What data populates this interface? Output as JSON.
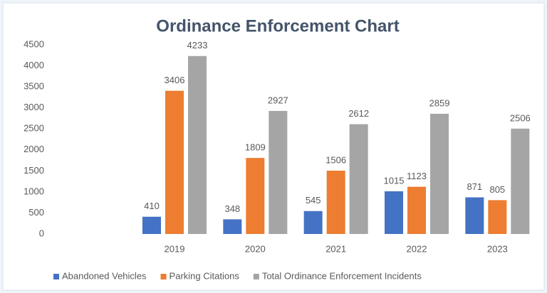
{
  "chart_data": {
    "type": "bar",
    "title": "Ordinance Enforcement Chart",
    "categories": [
      null,
      "2019",
      "2020",
      "2021",
      "2022",
      "2023"
    ],
    "series": [
      {
        "name": "Abandoned Vehicles",
        "color": "#4472c4",
        "values": [
          null,
          410,
          348,
          545,
          1015,
          871
        ]
      },
      {
        "name": "Parking Citations",
        "color": "#ed7d31",
        "values": [
          null,
          3406,
          1809,
          1506,
          1123,
          805
        ]
      },
      {
        "name": "Total Ordinance Enforcement Incidents",
        "color": "#a5a5a5",
        "values": [
          null,
          4233,
          2927,
          2612,
          2859,
          2506
        ]
      }
    ],
    "ylim": [
      0,
      4500
    ],
    "yticks": [
      0,
      500,
      1000,
      1500,
      2000,
      2500,
      3000,
      3500,
      4000,
      4500
    ],
    "grid": false,
    "legend": "bottom"
  }
}
